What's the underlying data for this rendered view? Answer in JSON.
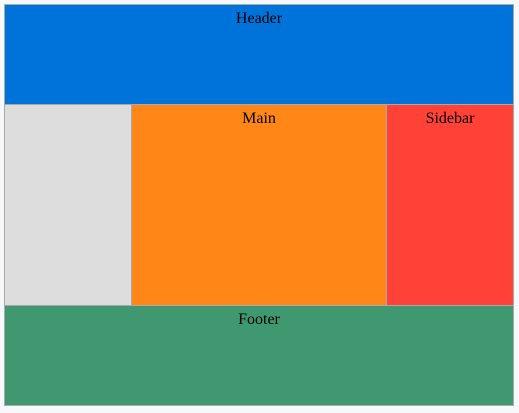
{
  "layout": {
    "header": {
      "label": "Header",
      "color": "#0073db"
    },
    "left": {
      "label": "",
      "color": "#dddddd"
    },
    "main": {
      "label": "Main",
      "color": "#ff8617"
    },
    "sidebar": {
      "label": "Sidebar",
      "color": "#ff4137"
    },
    "footer": {
      "label": "Footer",
      "color": "#3f9870"
    }
  }
}
